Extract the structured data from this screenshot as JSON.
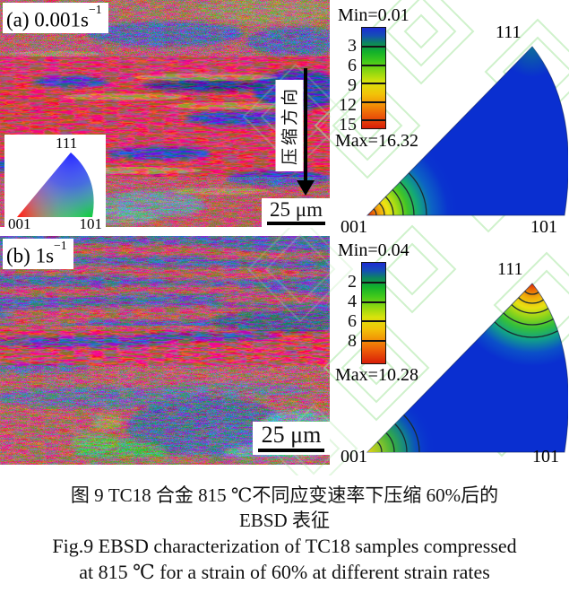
{
  "panel_a": {
    "label_base": "(a) 0.001s",
    "label_exp": "−1",
    "scale_bar_label": "25 μm",
    "compression_direction_label": "压缩方向",
    "inset_key": {
      "corner_111": "111",
      "corner_001": "001",
      "corner_101": "101"
    }
  },
  "panel_b": {
    "label_base": "(b) 1s",
    "label_exp": "−1",
    "scale_bar_label": "25 μm"
  },
  "ipf_a": {
    "min_label": "Min=0.01",
    "max_label": "Max=16.32",
    "ticks": [
      "3",
      "6",
      "9",
      "12",
      "15"
    ],
    "corner_111": "111",
    "corner_001": "001",
    "corner_101": "101"
  },
  "ipf_b": {
    "min_label": "Min=0.04",
    "max_label": "Max=10.28",
    "ticks": [
      "2",
      "4",
      "6",
      "8"
    ],
    "corner_111": "111",
    "corner_001": "001",
    "corner_101": "101"
  },
  "figure_caption": {
    "zh_line1": "图 9  TC18 合金 815 ℃不同应变速率下压缩 60%后的",
    "zh_line2": "EBSD 表征",
    "en_line1": "Fig.9  EBSD characterization of TC18 samples compressed",
    "en_line2": "at 815 ℃ for a strain of 60% at different strain rates"
  },
  "chart_data": [
    {
      "type": "heatmap",
      "title": "Inverse pole figure, strain rate 0.001 s−1",
      "scale_min": 0.01,
      "scale_max": 16.32,
      "scale_ticks": [
        3,
        6,
        9,
        12,
        15
      ],
      "corners": [
        "001",
        "101",
        "111"
      ],
      "max_intensity_corner": "001",
      "legend_position": "left"
    },
    {
      "type": "heatmap",
      "title": "Inverse pole figure, strain rate 1 s−1",
      "scale_min": 0.04,
      "scale_max": 10.28,
      "scale_ticks": [
        2,
        4,
        6,
        8
      ],
      "corners": [
        "001",
        "101",
        "111"
      ],
      "max_intensity_corner": "111",
      "secondary_intensity_corner": "001",
      "legend_position": "left"
    }
  ],
  "colors": {
    "map_red": "#ee1038",
    "map_blue": "#1b1ed6",
    "ipf_base_blue": "#0a2fd0",
    "watermark_green": "#a8e6a2"
  }
}
